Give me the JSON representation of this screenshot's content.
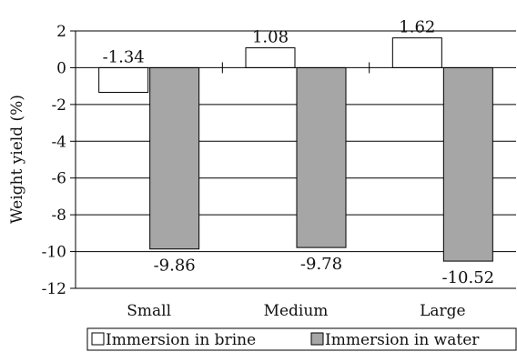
{
  "chart_data": {
    "type": "bar",
    "categories": [
      "Small",
      "Medium",
      "Large"
    ],
    "series": [
      {
        "name": "Immersion in brine",
        "values": [
          -1.34,
          1.08,
          1.62
        ],
        "labels": [
          "-1.34",
          "1.08",
          "1.62"
        ],
        "color": "#ffffff"
      },
      {
        "name": "Immersion in water",
        "values": [
          -9.86,
          -9.78,
          -10.52
        ],
        "labels": [
          "-9.86",
          "-9.78",
          "-10.52"
        ],
        "color": "#a6a6a6"
      }
    ],
    "title": "",
    "xlabel": "",
    "ylabel": "Weight yield (%)",
    "ylim": [
      -12,
      2
    ],
    "yticks": [
      "2",
      "0",
      "-2",
      "-4",
      "-6",
      "-8",
      "-10",
      "-12"
    ],
    "ytick_values": [
      2,
      0,
      -2,
      -4,
      -6,
      -8,
      -10,
      -12
    ],
    "grid": true,
    "legend_position": "bottom"
  }
}
